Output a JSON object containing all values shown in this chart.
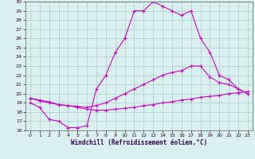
{
  "xlabel": "Windchill (Refroidissement éolien,°C)",
  "x_hours": [
    0,
    1,
    2,
    3,
    4,
    5,
    6,
    7,
    8,
    9,
    10,
    11,
    12,
    13,
    14,
    15,
    16,
    17,
    18,
    19,
    20,
    21,
    22,
    23
  ],
  "line1": [
    19.0,
    18.5,
    17.2,
    17.0,
    16.3,
    16.3,
    16.5,
    20.5,
    22.0,
    24.5,
    26.0,
    29.0,
    29.0,
    30.0,
    29.5,
    29.0,
    28.5,
    29.0,
    26.0,
    24.5,
    22.0,
    21.5,
    20.5,
    20.0
  ],
  "line2": [
    19.5,
    19.2,
    19.0,
    18.8,
    18.7,
    18.6,
    18.5,
    18.7,
    19.0,
    19.5,
    20.0,
    20.5,
    21.0,
    21.5,
    22.0,
    22.3,
    22.5,
    23.0,
    23.0,
    21.8,
    21.2,
    21.0,
    20.5,
    20.0
  ],
  "line3": [
    19.5,
    19.3,
    19.1,
    18.8,
    18.7,
    18.5,
    18.3,
    18.2,
    18.2,
    18.3,
    18.4,
    18.5,
    18.7,
    18.8,
    19.0,
    19.1,
    19.3,
    19.4,
    19.6,
    19.7,
    19.8,
    20.0,
    20.1,
    20.2
  ],
  "line_color": "#cc00cc",
  "bg_color": "#d8f0f0",
  "grid_color": "#aacccc",
  "ylim": [
    16,
    30
  ],
  "xlim": [
    -0.5,
    23.5
  ],
  "yticks": [
    16,
    17,
    18,
    19,
    20,
    21,
    22,
    23,
    24,
    25,
    26,
    27,
    28,
    29,
    30
  ],
  "xticks": [
    0,
    1,
    2,
    3,
    4,
    5,
    6,
    7,
    8,
    9,
    10,
    11,
    12,
    13,
    14,
    15,
    16,
    17,
    18,
    19,
    20,
    21,
    22,
    23
  ]
}
